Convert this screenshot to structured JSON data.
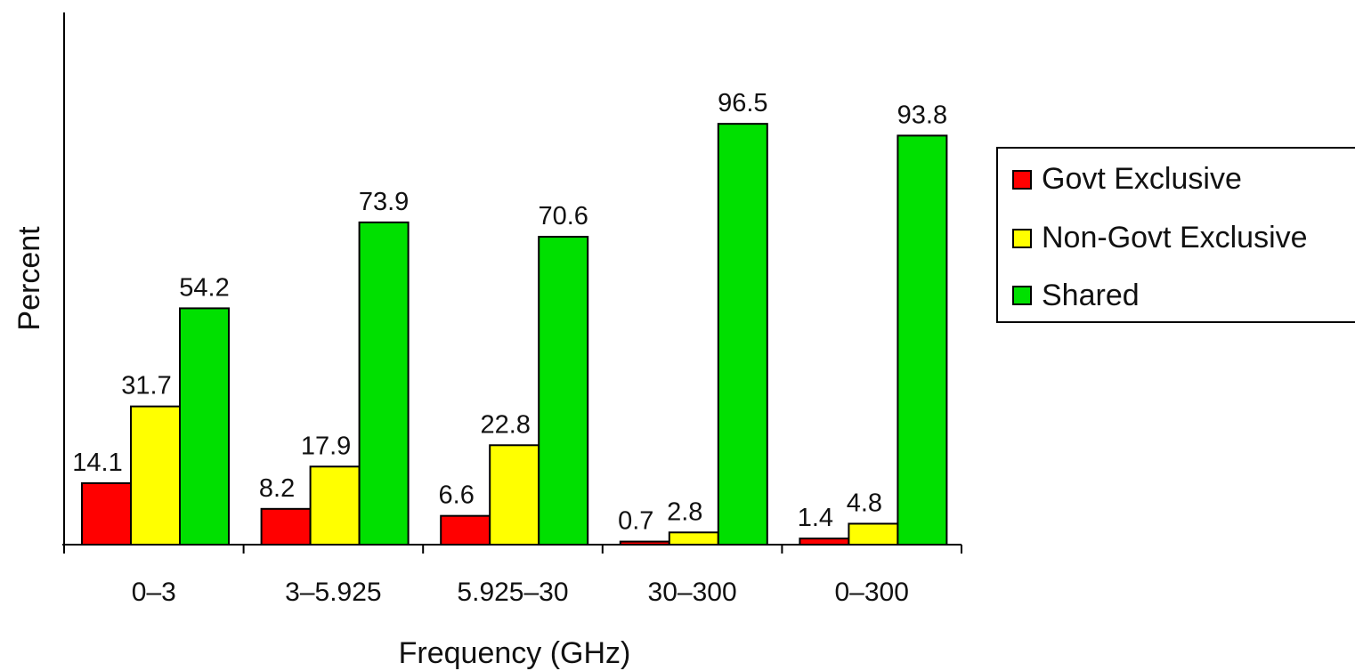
{
  "chart_data": {
    "type": "bar",
    "xlabel": "Frequency (GHz)",
    "ylabel": "Percent",
    "categories": [
      "0–3",
      "3–5.925",
      "5.925–30",
      "30–300",
      "0–300"
    ],
    "series": [
      {
        "name": "Govt Exclusive",
        "color": "#ff0000",
        "values": [
          14.1,
          8.2,
          6.6,
          0.7,
          1.4
        ],
        "labels": [
          "14.1",
          "8.2",
          "6.6",
          "0.7",
          "1.4"
        ]
      },
      {
        "name": "Non-Govt Exclusive",
        "color": "#ffff00",
        "values": [
          31.7,
          17.9,
          22.8,
          2.8,
          4.8
        ],
        "labels": [
          "31.7",
          "17.9",
          "22.8",
          "2.8",
          "4.8"
        ]
      },
      {
        "name": "Shared",
        "color": "#00e000",
        "values": [
          54.2,
          73.9,
          70.6,
          96.5,
          93.8
        ],
        "labels": [
          "54.2",
          "73.9",
          "70.6",
          "96.5",
          "93.8"
        ]
      }
    ],
    "ylim": [
      0,
      120
    ],
    "grid": false,
    "legend_position": "right"
  }
}
